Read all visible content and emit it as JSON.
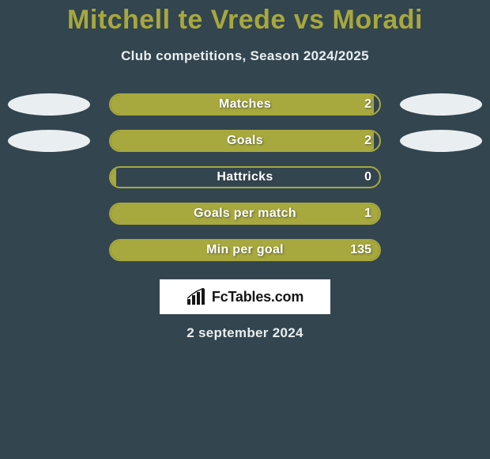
{
  "background_color": "#33454f",
  "title": {
    "text": "Mitchell te Vrede vs Moradi",
    "color": "#a7a83d",
    "fontsize": 34,
    "fontweight": 800
  },
  "subtitle": {
    "text": "Club competitions, Season 2024/2025",
    "color": "#e9eef0",
    "fontsize": 17
  },
  "chart": {
    "type": "bar",
    "pill_width": 344,
    "pill_height": 28,
    "pill_radius": 14,
    "bar_color": "#a7a83d",
    "border_color": "#a7a83d",
    "border_width": 2,
    "label_color": "#ffffff",
    "label_fontsize": 16,
    "label_shadow": "1px 1px 2px rgba(40,50,55,0.6)",
    "ellipse_color": "#e9eef0",
    "ellipse_width": 104,
    "ellipse_height": 28,
    "rows": [
      {
        "label": "Matches",
        "value": "2",
        "fill_pct": 98,
        "left_ellipse": true,
        "right_ellipse": true
      },
      {
        "label": "Goals",
        "value": "2",
        "fill_pct": 98,
        "left_ellipse": true,
        "right_ellipse": true
      },
      {
        "label": "Hattricks",
        "value": "0",
        "fill_pct": 2,
        "left_ellipse": false,
        "right_ellipse": false
      },
      {
        "label": "Goals per match",
        "value": "1",
        "fill_pct": 100,
        "left_ellipse": false,
        "right_ellipse": false
      },
      {
        "label": "Min per goal",
        "value": "135",
        "fill_pct": 100,
        "left_ellipse": false,
        "right_ellipse": false
      }
    ]
  },
  "branding": {
    "text": "FcTables.com",
    "text_color": "#151515",
    "background": "#ffffff",
    "fontsize": 18
  },
  "footer": {
    "text": "2 september 2024",
    "color": "#e9eef0",
    "fontsize": 17
  }
}
